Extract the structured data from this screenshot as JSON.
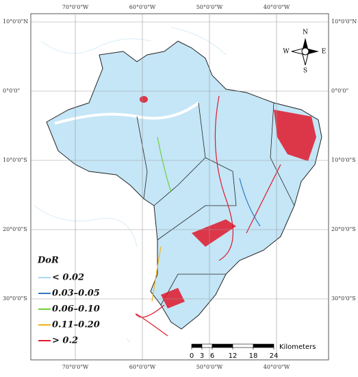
{
  "map": {
    "longitudes": [
      "70°0'0\"W",
      "60°0'0\"W",
      "50°0'0\"W",
      "40°0'0\"W"
    ],
    "latitudes": [
      "10°0'0\"N",
      "0°0'0\"",
      "10°0'0\"S",
      "20°0'0\"S",
      "30°0'0\"S"
    ],
    "compass": {
      "n": "N",
      "s": "S",
      "e": "E",
      "w": "W"
    },
    "legend": {
      "title": "DoR",
      "items": [
        {
          "label": "< 0.02",
          "color": "#a9d9f2"
        },
        {
          "label": "0.03–0.05",
          "color": "#2f78c8"
        },
        {
          "label": "0.06–0.10",
          "color": "#6fcf3a"
        },
        {
          "label": "0.11–0.20",
          "color": "#f2b21a"
        },
        {
          "label": "> 0.2",
          "color": "#e0182a"
        }
      ]
    },
    "scale_bar": {
      "ticks": [
        0,
        3,
        6,
        12,
        18,
        24
      ],
      "unit": "Kilometers"
    }
  }
}
